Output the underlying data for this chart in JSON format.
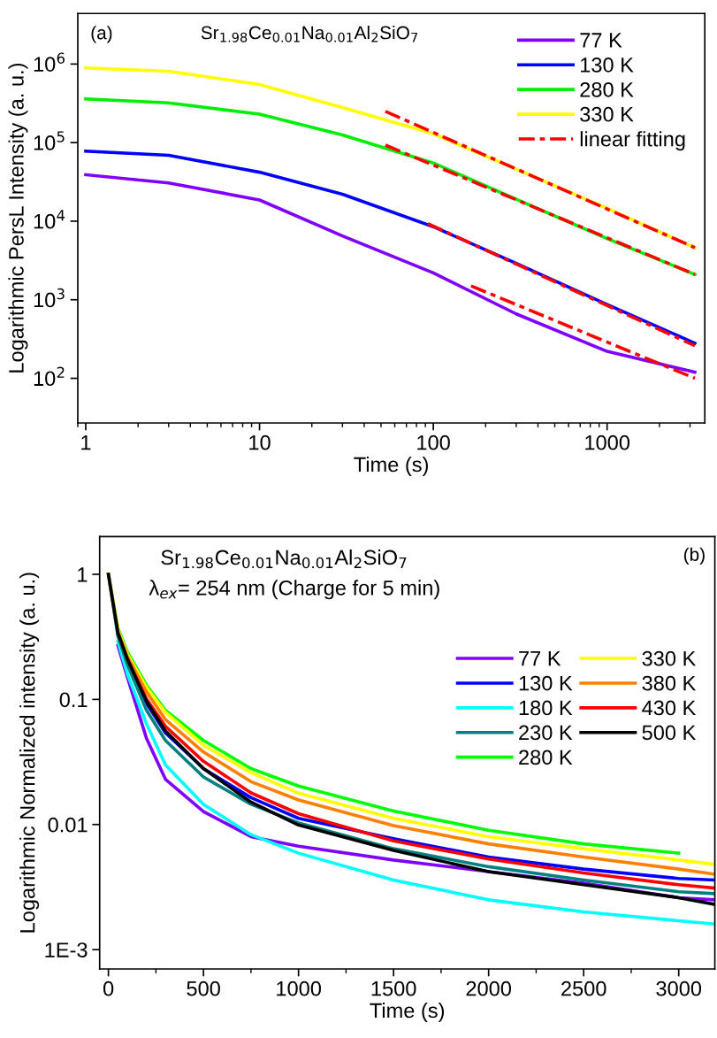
{
  "chart_data": [
    {
      "type": "line",
      "xlabel": "Time (s)",
      "ylabel": "Logarithmic PersL Intensity (a. u.)",
      "log": "xy",
      "legend": "top right",
      "grid": false,
      "line_style": "solid",
      "annotations": [
        "(a)",
        "Sr$_{1.98}$Ce$_{0.01}$Na$_{0.01}$Al$_{2}$SiO$_{7}$"
      ],
      "xlim": [
        0.9,
        3650
      ],
      "xticks": [
        1,
        10,
        100,
        1000
      ],
      "ylim": [
        27,
        4400000
      ],
      "yticks": [
        {
          "value": 100,
          "label": "10$^{2}$"
        },
        {
          "value": 1000,
          "label": "10$^{3}$"
        },
        {
          "value": 10000,
          "label": "10$^{4}$"
        },
        {
          "value": 100000,
          "label": "10$^{5}$"
        },
        {
          "value": 1000000,
          "label": "10$^{6}$"
        }
      ],
      "x": [
        1,
        3,
        10,
        30,
        100,
        300,
        1000,
        3200
      ],
      "series": [
        {
          "name": "77 K",
          "color": "#8000ff",
          "values": [
            39000,
            30700,
            18600,
            6500,
            2200,
            660,
            220,
            120
          ]
        },
        {
          "name": "130 K",
          "color": "#0000ff",
          "values": [
            78000,
            69000,
            42000,
            22000,
            8500,
            2900,
            870,
            280
          ]
        },
        {
          "name": "280 K",
          "color": "#00ee00",
          "values": [
            360000,
            320000,
            230000,
            125000,
            55000,
            19000,
            6000,
            2100
          ]
        },
        {
          "name": "330 K",
          "color": "#ffff00",
          "values": [
            890000,
            810000,
            550000,
            280000,
            130000,
            46000,
            14600,
            4600
          ]
        },
        {
          "name": "linear fitting",
          "color": "#ff0000",
          "line_style": "dashed",
          "x": [
            53,
            3200
          ],
          "values": [
            250000,
            4600
          ]
        },
        {
          "color": "#ff0000",
          "line_style": "dashed",
          "x": [
            53,
            3200
          ],
          "values": [
            93000,
            2100
          ]
        },
        {
          "color": "#ff0000",
          "line_style": "dashed",
          "x": [
            93,
            3200
          ],
          "values": [
            9300,
            260
          ]
        },
        {
          "color": "#ff0000",
          "line_style": "dashed",
          "x": [
            165,
            3200
          ],
          "values": [
            1500,
            100
          ]
        }
      ]
    },
    {
      "type": "line",
      "xlabel": "Time (s)",
      "ylabel": "Logarithmic Normalized intensity (a. u.)",
      "log": "y",
      "legend": "right",
      "grid": false,
      "line_style": "solid",
      "annotations": [
        "Sr$_{1.98}$Ce$_{0.01}$Na$_{0.01}$Al$_{2}$SiO$_{7}$",
        "λ$_{ex}$= 254 nm (Charge for 5 min)",
        "(b)"
      ],
      "xlim": [
        -46,
        3190
      ],
      "xticks": [
        0,
        500,
        1000,
        1500,
        2000,
        2500,
        3000
      ],
      "ylim": [
        0.0007,
        2.0
      ],
      "yticks": [
        {
          "value": 0.001,
          "label": "1E-3"
        },
        0.01,
        0.1,
        1
      ],
      "x": [
        0,
        50,
        100,
        200,
        300,
        500,
        750,
        1000,
        1500,
        2000,
        2500,
        3000,
        3190
      ],
      "series": [
        {
          "name": "77 K",
          "color": "#8000ff",
          "values": [
            null,
            0.27,
            0.15,
            0.049,
            0.023,
            0.0127,
            0.008,
            0.0067,
            0.0052,
            0.0042,
            0.0034,
            0.0026,
            0.0025
          ]
        },
        {
          "name": "130 K",
          "color": "#0000ff",
          "values": [
            null,
            0.33,
            0.2,
            0.093,
            0.054,
            0.028,
            0.0164,
            0.0112,
            0.0077,
            0.0055,
            0.0044,
            0.0037,
            0.0036
          ]
        },
        {
          "name": "180 K",
          "color": "#00ffff",
          "values": [
            null,
            0.29,
            0.16,
            0.064,
            0.03,
            0.0145,
            0.0083,
            0.0059,
            0.0036,
            0.0025,
            0.002,
            0.0017,
            0.0016
          ]
        },
        {
          "name": "230 K",
          "color": "#008080",
          "values": [
            1,
            0.32,
            0.19,
            0.082,
            0.047,
            0.024,
            0.0145,
            0.0103,
            0.0064,
            0.0046,
            0.0036,
            0.0029,
            0.0028
          ]
        },
        {
          "name": "280 K",
          "color": "#00ff00",
          "values": [
            1,
            0.37,
            0.24,
            0.13,
            0.082,
            0.047,
            0.028,
            0.0203,
            0.0128,
            0.009,
            0.007,
            0.0059,
            null
          ]
        },
        {
          "name": "330 K",
          "color": "#ffff00",
          "values": [
            1,
            0.36,
            0.23,
            0.125,
            0.079,
            0.043,
            0.026,
            0.0178,
            0.0112,
            0.008,
            0.0064,
            0.0052,
            0.0048
          ]
        },
        {
          "name": "380 K",
          "color": "#ff8000",
          "values": [
            1,
            0.35,
            0.22,
            0.115,
            0.069,
            0.038,
            0.022,
            0.0157,
            0.0098,
            0.007,
            0.0055,
            0.0044,
            0.004
          ]
        },
        {
          "name": "430 K",
          "color": "#ff0000",
          "values": [
            null,
            null,
            0.21,
            0.101,
            0.061,
            0.032,
            0.0179,
            0.0122,
            0.0074,
            0.0053,
            0.0041,
            0.0033,
            0.0031
          ]
        },
        {
          "name": "500 K",
          "color": "#000000",
          "values": [
            1,
            0.34,
            0.21,
            0.097,
            0.056,
            0.028,
            0.0151,
            0.0099,
            0.0062,
            0.0042,
            0.0033,
            0.0026,
            0.0023
          ]
        }
      ]
    }
  ]
}
